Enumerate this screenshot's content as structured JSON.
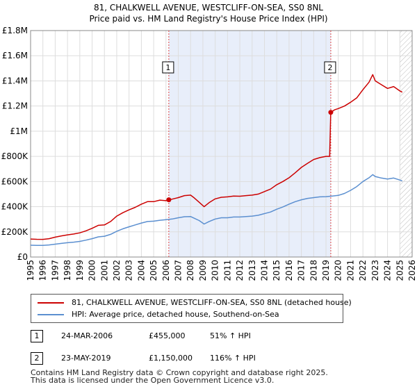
{
  "chart_data": {
    "type": "line",
    "title": "81, CHALKWELL AVENUE, WESTCLIFF-ON-SEA, SS0 8NL",
    "subtitle": "Price paid vs. HM Land Registry's House Price Index (HPI)",
    "xlabel": "",
    "ylabel": "",
    "xlim": [
      1995,
      2026
    ],
    "ylim": [
      0,
      1800000
    ],
    "x_ticks": [
      "1995",
      "1996",
      "1997",
      "1998",
      "1999",
      "2000",
      "2001",
      "2002",
      "2003",
      "2004",
      "2005",
      "2006",
      "2007",
      "2008",
      "2009",
      "2010",
      "2011",
      "2012",
      "2013",
      "2014",
      "2015",
      "2016",
      "2017",
      "2018",
      "2019",
      "2020",
      "2021",
      "2022",
      "2023",
      "2024",
      "2025",
      "2026"
    ],
    "y_ticks": [
      {
        "value": 0,
        "label": "£0"
      },
      {
        "value": 200000,
        "label": "£200K"
      },
      {
        "value": 400000,
        "label": "£400K"
      },
      {
        "value": 600000,
        "label": "£600K"
      },
      {
        "value": 800000,
        "label": "£800K"
      },
      {
        "value": 1000000,
        "label": "£1M"
      },
      {
        "value": 1200000,
        "label": "£1.2M"
      },
      {
        "value": 1400000,
        "label": "£1.4M"
      },
      {
        "value": 1600000,
        "label": "£1.6M"
      },
      {
        "value": 1800000,
        "label": "£1.8M"
      }
    ],
    "ownership_period": [
      2006.23,
      2019.39
    ],
    "future_hatch_from": 2025.0,
    "grid": true,
    "series": [
      {
        "name": "81, CHALKWELL AVENUE, WESTCLIFF-ON-SEA, SS0 8NL (detached house)",
        "color": "#cc0000",
        "points": [
          [
            1995.0,
            143000
          ],
          [
            1995.5,
            141000
          ],
          [
            1996.0,
            140000
          ],
          [
            1996.5,
            146000
          ],
          [
            1997.0,
            158000
          ],
          [
            1997.5,
            168000
          ],
          [
            1998.0,
            176000
          ],
          [
            1998.5,
            183000
          ],
          [
            1999.0,
            192000
          ],
          [
            1999.5,
            208000
          ],
          [
            2000.0,
            228000
          ],
          [
            2000.5,
            252000
          ],
          [
            2001.0,
            255000
          ],
          [
            2001.5,
            282000
          ],
          [
            2002.0,
            325000
          ],
          [
            2002.5,
            352000
          ],
          [
            2003.0,
            375000
          ],
          [
            2003.5,
            395000
          ],
          [
            2004.0,
            420000
          ],
          [
            2004.5,
            440000
          ],
          [
            2005.0,
            440000
          ],
          [
            2005.5,
            452000
          ],
          [
            2006.0,
            448000
          ],
          [
            2006.23,
            455000
          ],
          [
            2006.5,
            460000
          ],
          [
            2007.0,
            472000
          ],
          [
            2007.5,
            488000
          ],
          [
            2008.0,
            492000
          ],
          [
            2008.3,
            470000
          ],
          [
            2008.7,
            435000
          ],
          [
            2009.1,
            400000
          ],
          [
            2009.5,
            432000
          ],
          [
            2010.0,
            462000
          ],
          [
            2010.5,
            475000
          ],
          [
            2011.0,
            478000
          ],
          [
            2011.5,
            485000
          ],
          [
            2012.0,
            483000
          ],
          [
            2012.5,
            488000
          ],
          [
            2013.0,
            492000
          ],
          [
            2013.5,
            500000
          ],
          [
            2014.0,
            520000
          ],
          [
            2014.5,
            540000
          ],
          [
            2015.0,
            575000
          ],
          [
            2015.5,
            600000
          ],
          [
            2016.0,
            630000
          ],
          [
            2016.5,
            670000
          ],
          [
            2017.0,
            712000
          ],
          [
            2017.5,
            745000
          ],
          [
            2018.0,
            775000
          ],
          [
            2018.5,
            790000
          ],
          [
            2019.0,
            800000
          ],
          [
            2019.3,
            800000
          ],
          [
            2019.39,
            1150000
          ],
          [
            2019.7,
            1170000
          ],
          [
            2020.0,
            1180000
          ],
          [
            2020.5,
            1200000
          ],
          [
            2021.0,
            1230000
          ],
          [
            2021.5,
            1265000
          ],
          [
            2022.0,
            1330000
          ],
          [
            2022.5,
            1390000
          ],
          [
            2022.8,
            1450000
          ],
          [
            2023.0,
            1400000
          ],
          [
            2023.5,
            1370000
          ],
          [
            2024.0,
            1340000
          ],
          [
            2024.5,
            1355000
          ],
          [
            2025.0,
            1320000
          ],
          [
            2025.2,
            1310000
          ]
        ]
      },
      {
        "name": "HPI: Average price, detached house, Southend-on-Sea",
        "color": "#5b8fd0",
        "points": [
          [
            1995.0,
            94000
          ],
          [
            1995.5,
            93000
          ],
          [
            1996.0,
            93000
          ],
          [
            1996.5,
            96000
          ],
          [
            1997.0,
            102000
          ],
          [
            1997.5,
            108000
          ],
          [
            1998.0,
            114000
          ],
          [
            1998.5,
            118000
          ],
          [
            1999.0,
            124000
          ],
          [
            1999.5,
            134000
          ],
          [
            2000.0,
            146000
          ],
          [
            2000.5,
            160000
          ],
          [
            2001.0,
            165000
          ],
          [
            2001.5,
            180000
          ],
          [
            2002.0,
            205000
          ],
          [
            2002.5,
            224000
          ],
          [
            2003.0,
            240000
          ],
          [
            2003.5,
            255000
          ],
          [
            2004.0,
            270000
          ],
          [
            2004.5,
            282000
          ],
          [
            2005.0,
            285000
          ],
          [
            2005.5,
            292000
          ],
          [
            2006.0,
            297000
          ],
          [
            2006.5,
            302000
          ],
          [
            2007.0,
            312000
          ],
          [
            2007.5,
            320000
          ],
          [
            2008.0,
            322000
          ],
          [
            2008.3,
            308000
          ],
          [
            2008.7,
            290000
          ],
          [
            2009.1,
            262000
          ],
          [
            2009.5,
            282000
          ],
          [
            2010.0,
            302000
          ],
          [
            2010.5,
            312000
          ],
          [
            2011.0,
            312000
          ],
          [
            2011.5,
            318000
          ],
          [
            2012.0,
            318000
          ],
          [
            2012.5,
            322000
          ],
          [
            2013.0,
            325000
          ],
          [
            2013.5,
            332000
          ],
          [
            2014.0,
            345000
          ],
          [
            2014.5,
            358000
          ],
          [
            2015.0,
            380000
          ],
          [
            2015.5,
            398000
          ],
          [
            2016.0,
            420000
          ],
          [
            2016.5,
            440000
          ],
          [
            2017.0,
            455000
          ],
          [
            2017.5,
            466000
          ],
          [
            2018.0,
            472000
          ],
          [
            2018.5,
            478000
          ],
          [
            2019.0,
            480000
          ],
          [
            2019.5,
            485000
          ],
          [
            2020.0,
            490000
          ],
          [
            2020.5,
            505000
          ],
          [
            2021.0,
            530000
          ],
          [
            2021.5,
            560000
          ],
          [
            2022.0,
            600000
          ],
          [
            2022.5,
            630000
          ],
          [
            2022.8,
            655000
          ],
          [
            2023.0,
            640000
          ],
          [
            2023.5,
            628000
          ],
          [
            2024.0,
            620000
          ],
          [
            2024.5,
            628000
          ],
          [
            2025.0,
            612000
          ],
          [
            2025.2,
            605000
          ]
        ]
      }
    ],
    "sales": [
      {
        "marker": "1",
        "date": "24-MAR-2006",
        "x": 2006.23,
        "price": 455000,
        "price_label": "£455,000",
        "hpi": "51% ↑ HPI"
      },
      {
        "marker": "2",
        "date": "23-MAY-2019",
        "x": 2019.39,
        "price": 1150000,
        "price_label": "£1,150,000",
        "hpi": "116% ↑ HPI"
      }
    ],
    "legend_position": "below"
  },
  "footer": {
    "line1": "Contains HM Land Registry data © Crown copyright and database right 2025.",
    "line2": "This data is licensed under the Open Government Licence v3.0."
  }
}
